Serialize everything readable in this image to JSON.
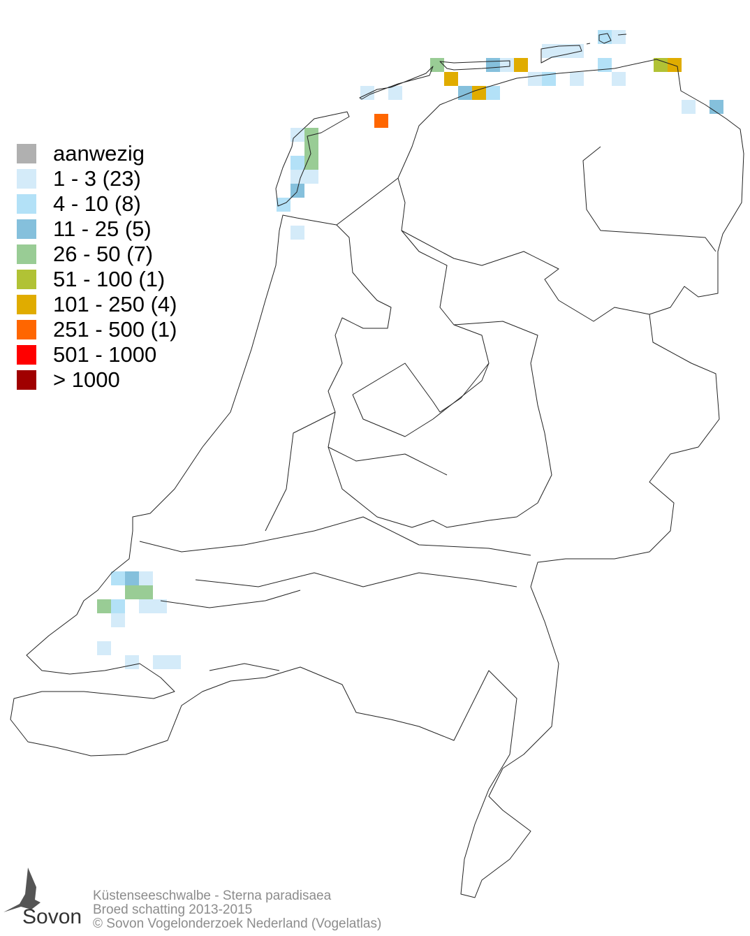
{
  "legend": [
    {
      "label": "aanwezig",
      "color": "#b0b0b0"
    },
    {
      "label": "1 - 3 (23)",
      "color": "#d4ebf9"
    },
    {
      "label": "4 - 10 (8)",
      "color": "#b3e1f7"
    },
    {
      "label": "11 - 25 (5)",
      "color": "#85c0dc"
    },
    {
      "label": "26 - 50 (7)",
      "color": "#99cc95"
    },
    {
      "label": "51 - 100 (1)",
      "color": "#b1c235"
    },
    {
      "label": "101 - 250 (4)",
      "color": "#e0ac00"
    },
    {
      "label": "251 - 500 (1)",
      "color": "#ff6600"
    },
    {
      "label": "501 - 1000",
      "color": "#ff0000"
    },
    {
      "label": "> 1000",
      "color": "#a00000"
    }
  ],
  "footer": {
    "line1": "Küstenseeschwalbe - Sterna paradisaea",
    "line2": "Broed schatting 2013-2015",
    "line3": "© Sovon Vogelonderzoek Nederland (Vogelatlas)"
  },
  "logo": {
    "text": "Sovon"
  }
}
